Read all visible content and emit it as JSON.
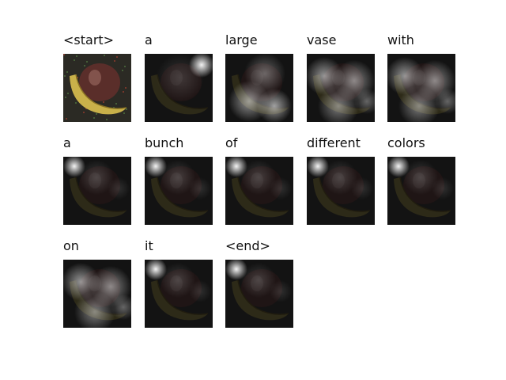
{
  "caption_words": [
    "<start>",
    "a",
    "large",
    "vase",
    "with",
    "a",
    "bunch",
    "of",
    "different",
    "colors",
    "on",
    "it",
    "<end>"
  ],
  "frames": [
    {
      "index": 0,
      "type": "original"
    },
    {
      "index": 1,
      "type": "attention",
      "focus": "top-right"
    },
    {
      "index": 2,
      "type": "attention",
      "focus": "bottom"
    },
    {
      "index": 3,
      "type": "attention",
      "focus": "diffuse"
    },
    {
      "index": 4,
      "type": "attention",
      "focus": "diffuse"
    },
    {
      "index": 5,
      "type": "attention",
      "focus": "top-left"
    },
    {
      "index": 6,
      "type": "attention",
      "focus": "top-left"
    },
    {
      "index": 7,
      "type": "attention",
      "focus": "top-left"
    },
    {
      "index": 8,
      "type": "attention",
      "focus": "top-left"
    },
    {
      "index": 9,
      "type": "attention",
      "focus": "top-left"
    },
    {
      "index": 10,
      "type": "attention",
      "focus": "diffuse"
    },
    {
      "index": 11,
      "type": "attention",
      "focus": "top-left"
    },
    {
      "index": 12,
      "type": "attention",
      "focus": "top-left"
    }
  ],
  "colors": {
    "background": "#ffffff",
    "text": "#111111",
    "banana": "#c9b14a",
    "vase": "#5a2e2a",
    "overlay": "#000000"
  }
}
